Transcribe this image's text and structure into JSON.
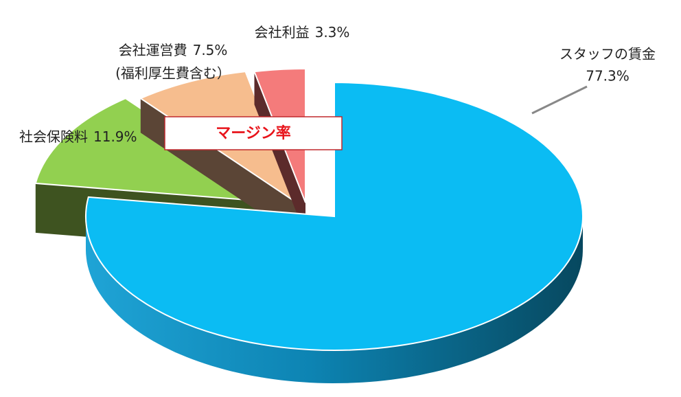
{
  "chart_data": {
    "type": "pie3d",
    "categories": [
      "スタッフの賃金",
      "社会保険料",
      "会社運営費",
      "会社利益"
    ],
    "values": [
      77.3,
      11.9,
      7.5,
      3.3
    ],
    "value_labels": [
      "77.3%",
      "11.9%",
      "7.5%",
      "3.3%"
    ],
    "colors": [
      "#0bbcf3",
      "#92d050",
      "#f6bd8e",
      "#f47b7b"
    ],
    "annotations": [
      "(福利厚生費含む）",
      "マージン率"
    ]
  }
}
